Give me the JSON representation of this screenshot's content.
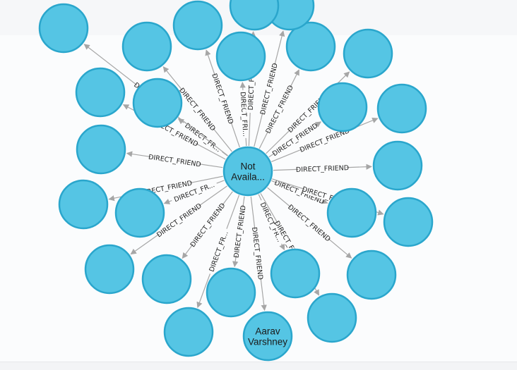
{
  "graph": {
    "center": {
      "label_lines": [
        "Not",
        "Availa..."
      ]
    },
    "nodes": [
      {
        "id": "n1",
        "label_lines": []
      },
      {
        "id": "n2",
        "label_lines": []
      },
      {
        "id": "n3",
        "label_lines": []
      },
      {
        "id": "n4",
        "label_lines": []
      },
      {
        "id": "n5",
        "label_lines": []
      },
      {
        "id": "n6",
        "label_lines": []
      },
      {
        "id": "n7",
        "label_lines": []
      },
      {
        "id": "n8",
        "label_lines": []
      },
      {
        "id": "n9",
        "label_lines": []
      },
      {
        "id": "n10",
        "label_lines": []
      },
      {
        "id": "n11",
        "label_lines": []
      },
      {
        "id": "n12",
        "label_lines": []
      },
      {
        "id": "n13",
        "label_lines": []
      },
      {
        "id": "n14",
        "label_lines": []
      },
      {
        "id": "n15",
        "label_lines": []
      },
      {
        "id": "n16",
        "label_lines": []
      },
      {
        "id": "n17",
        "label_lines": []
      },
      {
        "id": "n18",
        "label_lines": []
      },
      {
        "id": "n19",
        "label_lines": [
          "Aarav",
          "Varshney"
        ]
      },
      {
        "id": "n20",
        "label_lines": []
      },
      {
        "id": "n21",
        "label_lines": []
      },
      {
        "id": "n22",
        "label_lines": []
      },
      {
        "id": "n23",
        "label_lines": []
      },
      {
        "id": "n24",
        "label_lines": []
      },
      {
        "id": "n25",
        "label_lines": []
      },
      {
        "id": "n26",
        "label_lines": []
      }
    ],
    "edges": [
      {
        "to": "n1",
        "label": "DIRECT_FRIEND"
      },
      {
        "to": "n2",
        "label": "DIRECT_FRIEND"
      },
      {
        "to": "n3",
        "label": "DIRECT_FRI..."
      },
      {
        "to": "n4",
        "label": "DIRECT_FRIEND"
      },
      {
        "to": "n5",
        "label": "DIRECT_FRIEND"
      },
      {
        "to": "n6",
        "label": "DIRECT_FRIEND"
      },
      {
        "to": "n7",
        "label": "DIRECT_FR..."
      },
      {
        "to": "n8",
        "label": "DIRECT_FRIEND"
      },
      {
        "to": "n9",
        "label": "DIRECT_FRIEND"
      },
      {
        "to": "n10",
        "label": "DIRECT_FRIEND"
      },
      {
        "to": "n11",
        "label": "DIRECT_FR..."
      },
      {
        "to": "n12",
        "label": "DIRECT_FRIEND"
      },
      {
        "to": "n13",
        "label": "DIRECT_FRIEND"
      },
      {
        "to": "n14",
        "label": "DIRECT_FRIEND"
      },
      {
        "to": "n15",
        "label": "DIRECT_FRIEND"
      },
      {
        "to": "n16",
        "label": "DIRECT_FRIEND"
      },
      {
        "to": "n17",
        "label": "DIRECT_FRIEND"
      },
      {
        "to": "n18",
        "label": "DIRECT_FRIEND"
      },
      {
        "to": "n19",
        "label": "DIRECT_FRIEND"
      },
      {
        "to": "n20",
        "label": "DIRECT_FR..."
      },
      {
        "to": "n21",
        "label": "DIRECT_FRIEND"
      },
      {
        "to": "n22",
        "label": "DIRECT_FRIEND"
      },
      {
        "to": "n23",
        "label": "DIRECT_FR..."
      },
      {
        "to": "n24",
        "label": "DIRECT_FRIEND"
      },
      {
        "to": "n25",
        "label": "DIRECT_FR..."
      },
      {
        "to": "n26",
        "label": "DIRECT_FRIEND"
      }
    ]
  }
}
